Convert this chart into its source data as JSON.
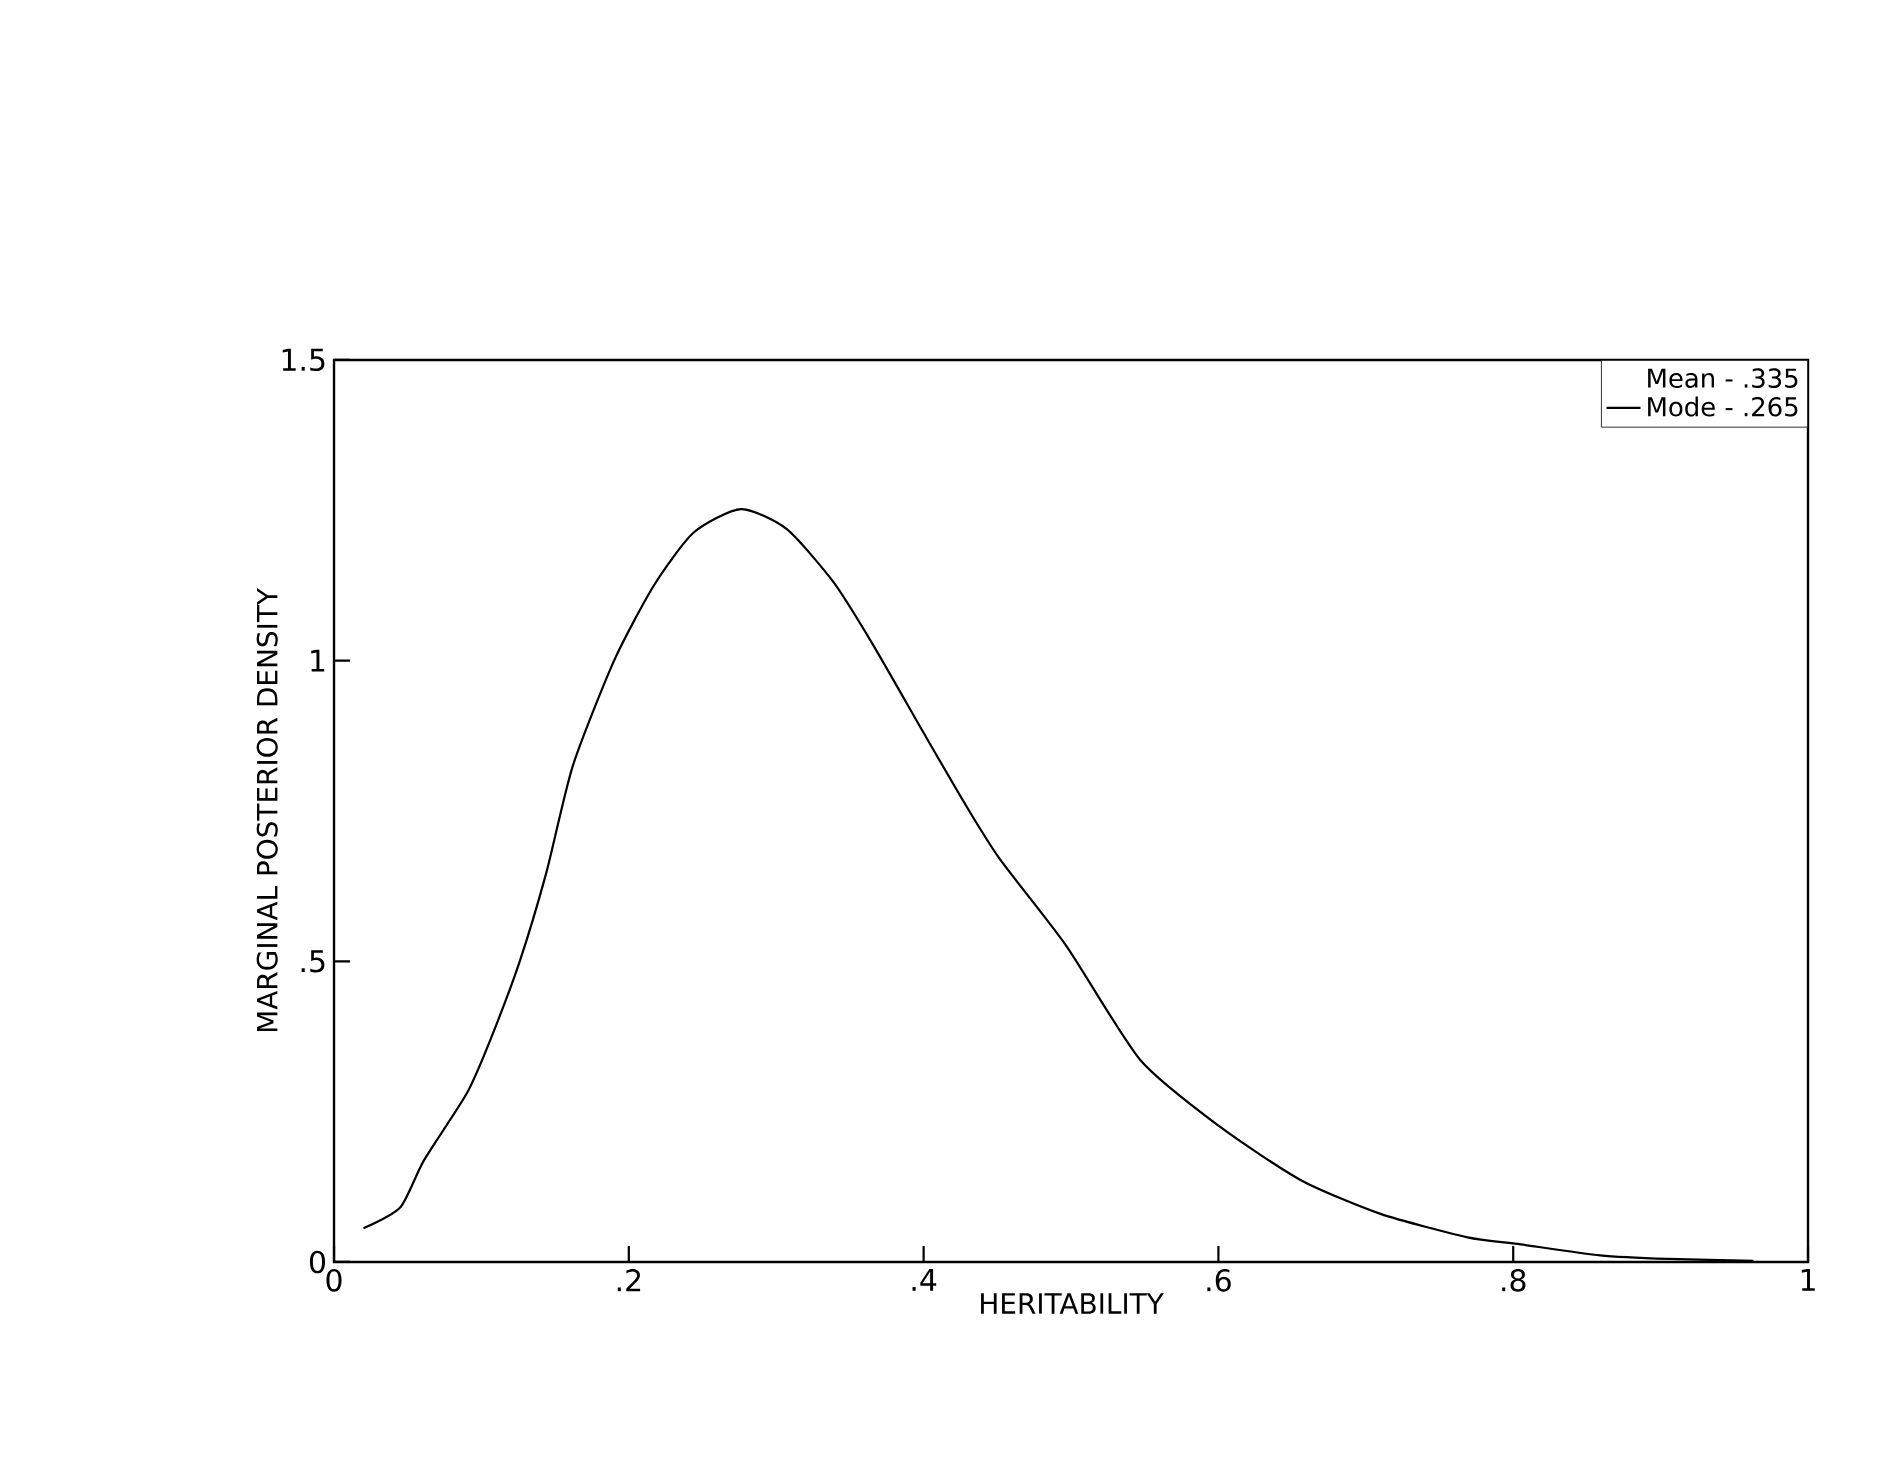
{
  "chart_data": {
    "type": "line",
    "xlabel": "HERITABILITY",
    "ylabel": "MARGINAL POSTERIOR DENSITY",
    "legend_title": "Mean - .335",
    "legend": "top right",
    "grid": false,
    "marker": "none",
    "line_style": "solid",
    "xlim": [
      0,
      1
    ],
    "ylim": [
      0,
      1.5
    ],
    "xticks": [
      0,
      {
        "value": 0.2,
        "label": ".2"
      },
      {
        "value": 0.4,
        "label": ".4"
      },
      {
        "value": 0.6,
        "label": ".6"
      },
      {
        "value": 0.8,
        "label": ".8"
      },
      1
    ],
    "yticks": [
      0,
      {
        "value": 0.5,
        "label": ".5"
      },
      1,
      1.5
    ],
    "series": [
      {
        "name": "Mode - .265",
        "color": "#000000",
        "x": [
          0.02,
          0.045,
          0.061,
          0.09,
          0.106,
          0.126,
          0.144,
          0.162,
          0.19,
          0.217,
          0.244,
          0.276,
          0.307,
          0.339,
          0.366,
          0.4,
          0.429,
          0.452,
          0.497,
          0.547,
          0.601,
          0.656,
          0.71,
          0.769,
          0.803,
          0.859,
          0.905,
          0.963
        ],
        "values": [
          0.056,
          0.091,
          0.169,
          0.28,
          0.369,
          0.5,
          0.647,
          0.825,
          1.0,
          1.125,
          1.213,
          1.252,
          1.219,
          1.13,
          1.025,
          0.88,
          0.758,
          0.669,
          0.525,
          0.336,
          0.225,
          0.136,
          0.08,
          0.041,
          0.03,
          0.011,
          0.005,
          0.002
        ]
      }
    ]
  }
}
